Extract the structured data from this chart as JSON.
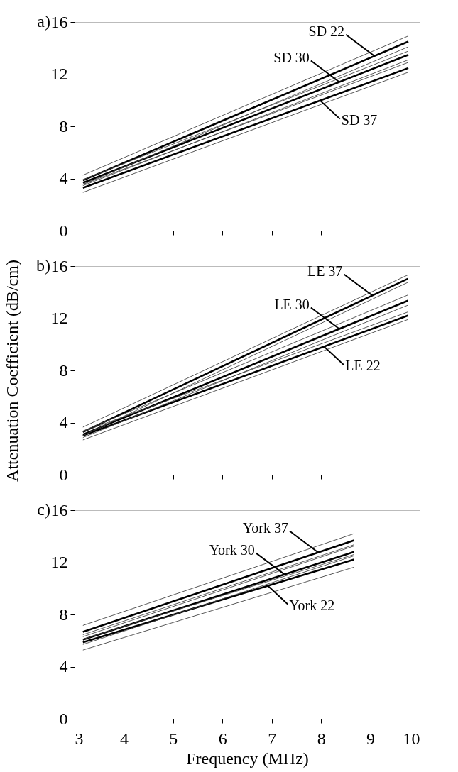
{
  "chart_data": [
    {
      "type": "line",
      "title": "a)",
      "x": [
        3.17,
        9.77
      ],
      "xlim": [
        3,
        10
      ],
      "xticks": [
        3,
        4,
        5,
        6,
        7,
        8,
        9,
        10
      ],
      "ylim": [
        0,
        16
      ],
      "yticks": [
        0,
        4,
        8,
        12,
        16
      ],
      "tick_labels": "y",
      "grid": false,
      "marker": "none",
      "line_style": "solid",
      "series": [
        {
          "color": "#000000",
          "values": [
            3.86,
            14.5
          ]
        },
        {
          "color": "#000000",
          "values": [
            3.67,
            13.48
          ]
        },
        {
          "color": "#000000",
          "values": [
            3.28,
            12.47
          ]
        },
        {
          "color": "#444444",
          "values": [
            4.25,
            14.93
          ]
        },
        {
          "color": "#444444",
          "values": [
            3.55,
            14.1
          ]
        },
        {
          "color": "#444444",
          "values": [
            3.9,
            13.77
          ]
        },
        {
          "color": "#444444",
          "values": [
            3.45,
            13.1
          ]
        },
        {
          "color": "#444444",
          "values": [
            3.55,
            12.9
          ]
        },
        {
          "color": "#444444",
          "values": [
            2.93,
            12.15
          ]
        }
      ],
      "annotations": [
        {
          "text": "SD 22",
          "x": 9.08,
          "y": 13.4
        },
        {
          "text": "SD 30",
          "x": 8.37,
          "y": 11.4
        },
        {
          "text": "SD 37",
          "x": 7.98,
          "y": 9.98
        }
      ]
    },
    {
      "type": "line",
      "title": "b)",
      "ylabel": "Attenuation Coefficient (dB/cm)",
      "x": [
        3.17,
        9.76
      ],
      "xlim": [
        3,
        10
      ],
      "xticks": [
        3,
        4,
        5,
        6,
        7,
        8,
        9,
        10
      ],
      "ylim": [
        0,
        16
      ],
      "yticks": [
        0,
        4,
        8,
        12,
        16
      ],
      "tick_labels": "y",
      "grid": false,
      "marker": "none",
      "line_style": "solid",
      "series": [
        {
          "color": "#000000",
          "values": [
            3.27,
            15.03
          ]
        },
        {
          "color": "#000000",
          "values": [
            3.08,
            13.35
          ]
        },
        {
          "color": "#000000",
          "values": [
            3.0,
            12.2
          ]
        },
        {
          "color": "#444444",
          "values": [
            3.65,
            15.32
          ]
        },
        {
          "color": "#444444",
          "values": [
            3.0,
            14.75
          ]
        },
        {
          "color": "#444444",
          "values": [
            3.35,
            13.78
          ]
        },
        {
          "color": "#444444",
          "values": [
            2.85,
            13.0
          ]
        },
        {
          "color": "#444444",
          "values": [
            3.3,
            12.48
          ]
        },
        {
          "color": "#444444",
          "values": [
            2.67,
            11.9
          ]
        }
      ],
      "annotations": [
        {
          "text": "LE 37",
          "x": 9.04,
          "y": 13.74
        },
        {
          "text": "LE 30",
          "x": 8.37,
          "y": 11.18
        },
        {
          "text": "LE 22",
          "x": 8.06,
          "y": 9.83
        }
      ]
    },
    {
      "type": "line",
      "title": "c)",
      "xlabel": "Frequency (MHz)",
      "x": [
        3.17,
        8.67
      ],
      "xlim": [
        3,
        10
      ],
      "xticks": [
        3,
        4,
        5,
        6,
        7,
        8,
        9,
        10
      ],
      "ylim": [
        0,
        16
      ],
      "yticks": [
        0,
        4,
        8,
        12,
        16
      ],
      "grid": false,
      "marker": "none",
      "line_style": "solid",
      "series": [
        {
          "color": "#000000",
          "values": [
            6.67,
            13.69
          ]
        },
        {
          "color": "#000000",
          "values": [
            6.07,
            12.8
          ]
        },
        {
          "color": "#000000",
          "values": [
            5.87,
            12.22
          ]
        },
        {
          "color": "#444444",
          "values": [
            7.16,
            14.2
          ]
        },
        {
          "color": "#444444",
          "values": [
            6.3,
            13.25
          ]
        },
        {
          "color": "#444444",
          "values": [
            6.45,
            13.35
          ]
        },
        {
          "color": "#444444",
          "values": [
            5.7,
            12.5
          ]
        },
        {
          "color": "#444444",
          "values": [
            6.1,
            12.6
          ]
        },
        {
          "color": "#444444",
          "values": [
            5.27,
            11.63
          ]
        }
      ],
      "annotations": [
        {
          "text": "York 37",
          "x": 7.94,
          "y": 12.76
        },
        {
          "text": "York 30",
          "x": 7.26,
          "y": 11.07
        },
        {
          "text": "York 22",
          "x": 6.92,
          "y": 10.2
        }
      ]
    }
  ]
}
